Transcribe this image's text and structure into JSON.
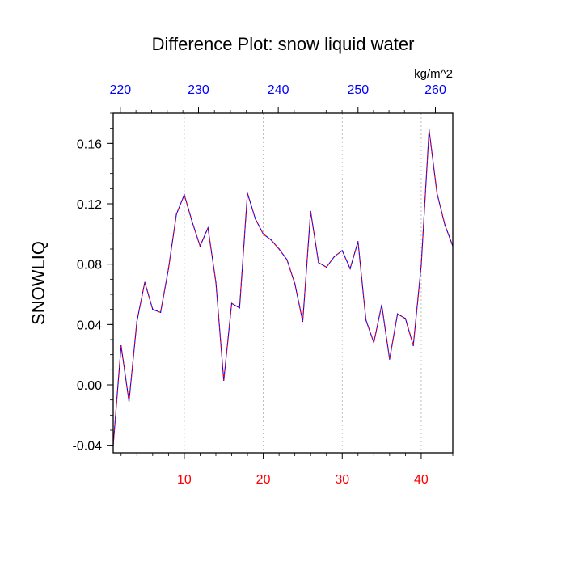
{
  "chart_data": {
    "type": "line",
    "title": "Difference Plot: snow liquid water",
    "units": "kg/m^2",
    "ylabel": "SNOWLIQ",
    "xlabel": "",
    "xlim": [
      1,
      44
    ],
    "ylim": [
      -0.045,
      0.18
    ],
    "yticks": [
      -0.04,
      0.0,
      0.04,
      0.08,
      0.12,
      0.16
    ],
    "ytick_labels": [
      "-0.04",
      "0.00",
      "0.04",
      "0.08",
      "0.12",
      "0.16"
    ],
    "xticks_bottom": [
      10,
      20,
      30,
      40
    ],
    "xticks_bottom_labels": [
      "10",
      "20",
      "30",
      "40"
    ],
    "top_axis_ticks": [
      220,
      230,
      240,
      250,
      260
    ],
    "top_axis_labels": [
      "220",
      "230",
      "240",
      "250",
      "260"
    ],
    "top_axis_positions": [
      1.9,
      11.8,
      21.9,
      32.0,
      41.8
    ],
    "vertical_gridlines_at": [
      10,
      20,
      30,
      40
    ],
    "colors": {
      "line_primary": "#0000ff",
      "line_secondary": "#ff0000",
      "bottom_tick_labels": "#ff0000",
      "top_tick_labels": "#0000ff",
      "gridline": "#b0b0b0"
    },
    "series": [
      {
        "name": "SNOWLIQ",
        "x": [
          1,
          2,
          3,
          4,
          5,
          6,
          7,
          8,
          9,
          10,
          11,
          12,
          13,
          14,
          15,
          16,
          17,
          18,
          19,
          20,
          21,
          22,
          23,
          24,
          25,
          26,
          27,
          28,
          29,
          30,
          31,
          32,
          33,
          34,
          35,
          36,
          37,
          38,
          39,
          40,
          41,
          42,
          43,
          44
        ],
        "values": [
          -0.04,
          0.026,
          -0.011,
          0.042,
          0.068,
          0.05,
          0.048,
          0.077,
          0.113,
          0.126,
          0.108,
          0.092,
          0.104,
          0.068,
          0.003,
          0.054,
          0.051,
          0.127,
          0.11,
          0.1,
          0.096,
          0.09,
          0.083,
          0.067,
          0.042,
          0.115,
          0.081,
          0.078,
          0.085,
          0.089,
          0.077,
          0.095,
          0.043,
          0.028,
          0.053,
          0.017,
          0.047,
          0.044,
          0.026,
          0.079,
          0.169,
          0.127,
          0.106,
          0.092
        ]
      }
    ]
  }
}
